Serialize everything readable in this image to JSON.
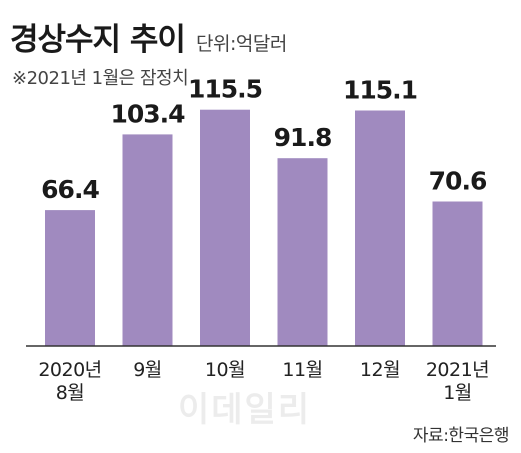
{
  "chart_data": {
    "type": "bar",
    "title": "경상수지 추이",
    "unit": "단위:억달러",
    "note": "※2021년 1월은 잠정치",
    "source": "자료:한국은행",
    "categories": [
      [
        "2020년",
        "8월"
      ],
      [
        "9월"
      ],
      [
        "10월"
      ],
      [
        "11월"
      ],
      [
        "12월"
      ],
      [
        "2021년",
        "1월"
      ]
    ],
    "values": [
      66.4,
      103.4,
      115.5,
      91.8,
      115.1,
      70.6
    ],
    "value_labels": [
      "66.4",
      "103.4",
      "115.5",
      "91.8",
      "115.1",
      "70.6"
    ],
    "ylim": [
      0,
      130
    ],
    "grid": false,
    "bar_color": "#a08abf"
  },
  "watermark": "이데일리"
}
